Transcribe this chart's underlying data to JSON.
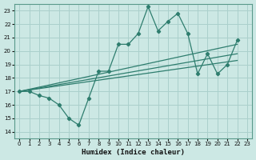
{
  "xlabel": "Humidex (Indice chaleur)",
  "ylabel": "",
  "bg_color": "#cce8e4",
  "grid_color": "#aad0cc",
  "line_color": "#2e7d6e",
  "xlim": [
    -0.5,
    23.5
  ],
  "ylim": [
    13.5,
    23.5
  ],
  "xticks": [
    0,
    1,
    2,
    3,
    4,
    5,
    6,
    7,
    8,
    9,
    10,
    11,
    12,
    13,
    14,
    15,
    16,
    17,
    18,
    19,
    20,
    21,
    22,
    23
  ],
  "yticks": [
    14,
    15,
    16,
    17,
    18,
    19,
    20,
    21,
    22,
    23
  ],
  "main_x": [
    0,
    1,
    2,
    3,
    4,
    5,
    6,
    7,
    8,
    9,
    10,
    11,
    12,
    13,
    14,
    15,
    16,
    17,
    18,
    19,
    20,
    21,
    22
  ],
  "main_y": [
    17,
    17,
    16.7,
    16.5,
    16.0,
    15.0,
    14.5,
    16.5,
    18.5,
    18.5,
    20.5,
    20.5,
    21.3,
    23.3,
    21.5,
    22.2,
    22.8,
    21.3,
    18.3,
    19.8,
    18.3,
    19.0,
    20.8
  ],
  "line2_x": [
    0,
    22
  ],
  "line2_y": [
    17.0,
    20.5
  ],
  "line3_x": [
    0,
    22
  ],
  "line3_y": [
    17.0,
    19.3
  ],
  "line4_x": [
    0,
    22
  ],
  "line4_y": [
    17.0,
    19.8
  ]
}
